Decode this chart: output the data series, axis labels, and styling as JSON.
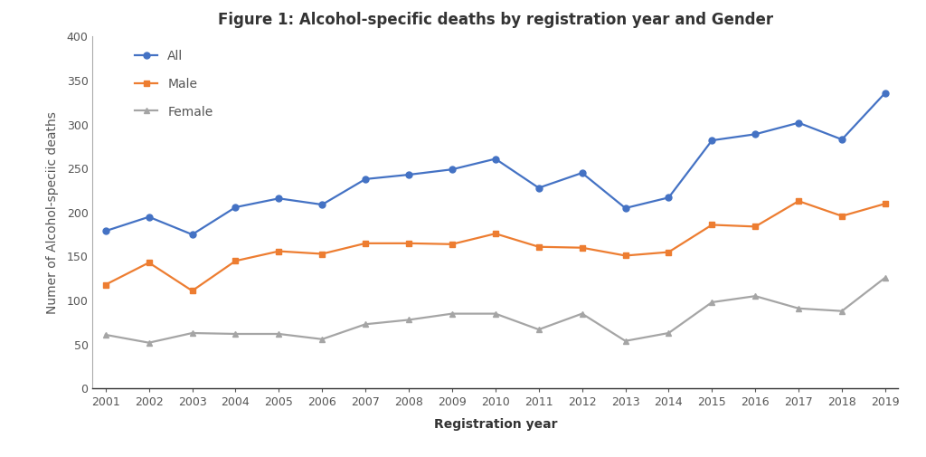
{
  "title": "Figure 1: Alcohol-specific deaths by registration year and Gender",
  "xlabel": "Registration year",
  "ylabel": "Numer of Alcohol-speciic deaths",
  "years": [
    2001,
    2002,
    2003,
    2004,
    2005,
    2006,
    2007,
    2008,
    2009,
    2010,
    2011,
    2012,
    2013,
    2014,
    2015,
    2016,
    2017,
    2018,
    2019
  ],
  "all": [
    179,
    195,
    175,
    206,
    216,
    209,
    238,
    243,
    249,
    261,
    228,
    245,
    205,
    217,
    282,
    289,
    302,
    283,
    336
  ],
  "male": [
    118,
    143,
    111,
    145,
    156,
    153,
    165,
    165,
    164,
    176,
    161,
    160,
    151,
    155,
    186,
    184,
    213,
    196,
    210
  ],
  "female": [
    61,
    52,
    63,
    62,
    62,
    56,
    73,
    78,
    85,
    85,
    67,
    85,
    54,
    63,
    98,
    105,
    91,
    88,
    126
  ],
  "color_all": "#4472C4",
  "color_male": "#ED7D31",
  "color_female": "#A5A5A5",
  "ylim": [
    0,
    400
  ],
  "yticks": [
    0,
    50,
    100,
    150,
    200,
    250,
    300,
    350,
    400
  ],
  "background_color": "#FFFFFF",
  "title_fontsize": 12,
  "axis_label_fontsize": 10,
  "tick_fontsize": 9,
  "legend_fontsize": 10,
  "linewidth": 1.6,
  "markersize": 5
}
